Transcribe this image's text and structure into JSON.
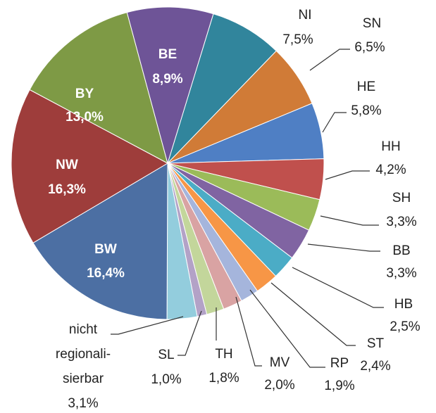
{
  "chart_data": {
    "type": "pie",
    "categories": [
      "NI",
      "SN",
      "HE",
      "HH",
      "SH",
      "BB",
      "HB",
      "ST",
      "RP",
      "MV",
      "TH",
      "SL",
      "nicht\nregionali-\nsierbar",
      "BW",
      "NW",
      "BY",
      "BE"
    ],
    "values": [
      7.5,
      6.5,
      5.8,
      4.2,
      3.3,
      3.3,
      2.5,
      2.4,
      1.9,
      2.0,
      1.8,
      1.0,
      3.1,
      16.4,
      16.3,
      13.0,
      8.9
    ],
    "value_labels": [
      "7,5%",
      "6,5%",
      "5,8%",
      "4,2%",
      "3,3%",
      "3,3%",
      "2,5%",
      "2,4%",
      "1,9%",
      "2,0%",
      "1,8%",
      "1,0%",
      "3,1%",
      "16,4%",
      "16,3%",
      "13,0%",
      "8,9%"
    ],
    "colors": [
      "#31859c",
      "#d07b37",
      "#4f7fc4",
      "#c0504d",
      "#9bbb59",
      "#8064a2",
      "#4bacc6",
      "#f79646",
      "#a5b5dc",
      "#d9a3a3",
      "#c3d69b",
      "#b3a2c7",
      "#93cddd",
      "#4c6fa3",
      "#9e3d3b",
      "#7e9a45",
      "#6e5497"
    ]
  }
}
